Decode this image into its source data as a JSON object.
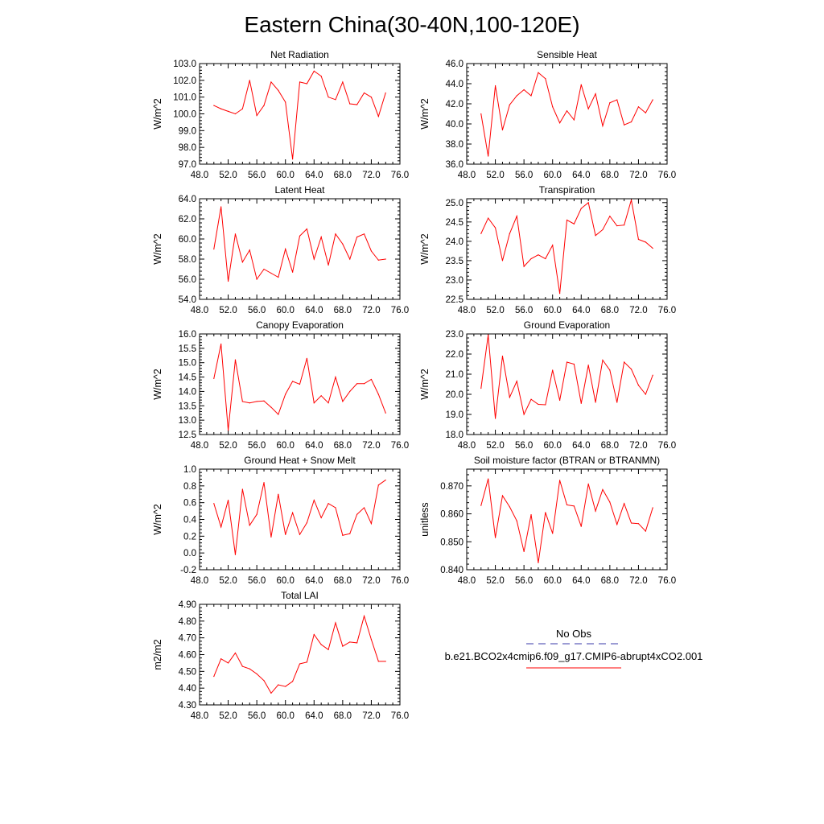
{
  "figure_title": "Eastern China(30-40N,100-120E)",
  "colors": {
    "model_line": "#ff0000",
    "obs_line": "#3a3aa8",
    "axis": "#000000"
  },
  "legend": {
    "obs_label": "No Obs",
    "model_label": "b.e21.BCO2x4cmip6.f09_g17.CMIP6-abrupt4xCO2.001"
  },
  "chart_data": [
    {
      "type": "line",
      "title": "Net Radiation",
      "xlabel": "",
      "ylabel": "W/m^2",
      "xlim": [
        48,
        76
      ],
      "ylim": [
        97,
        103
      ],
      "x_ticks": [
        "48.0",
        "52.0",
        "56.0",
        "60.0",
        "64.0",
        "68.0",
        "72.0",
        "76.0"
      ],
      "y_ticks": [
        "97.0",
        "98.0",
        "99.0",
        "100.0",
        "101.0",
        "102.0",
        "103.0"
      ],
      "x": [
        50,
        51,
        52,
        53,
        54,
        55,
        56,
        57,
        58,
        59,
        60,
        61,
        62,
        63,
        64,
        65,
        66,
        67,
        68,
        69,
        70,
        71,
        72,
        73,
        74
      ],
      "series": [
        {
          "name": "b.e21.BCO2x4cmip6.f09_g17.CMIP6-abrupt4xCO2.001",
          "values": [
            100.5,
            100.3,
            100.15,
            100.0,
            100.3,
            102.0,
            99.9,
            100.5,
            101.9,
            101.4,
            100.7,
            97.3,
            101.9,
            101.8,
            102.55,
            102.25,
            101.0,
            100.85,
            101.9,
            100.6,
            100.55,
            101.25,
            101.0,
            99.85,
            101.25
          ]
        }
      ]
    },
    {
      "type": "line",
      "title": "Sensible Heat",
      "xlabel": "",
      "ylabel": "W/m^2",
      "xlim": [
        48,
        76
      ],
      "ylim": [
        36,
        46
      ],
      "x_ticks": [
        "48.0",
        "52.0",
        "56.0",
        "60.0",
        "64.0",
        "68.0",
        "72.0",
        "76.0"
      ],
      "y_ticks": [
        "36.0",
        "38.0",
        "40.0",
        "42.0",
        "44.0",
        "46.0"
      ],
      "x": [
        50,
        51,
        52,
        53,
        54,
        55,
        56,
        57,
        58,
        59,
        60,
        61,
        62,
        63,
        64,
        65,
        66,
        67,
        68,
        69,
        70,
        71,
        72,
        73,
        74
      ],
      "series": [
        {
          "name": "b.e21.BCO2x4cmip6.f09_g17.CMIP6-abrupt4xCO2.001",
          "values": [
            41.0,
            36.8,
            43.8,
            39.4,
            41.9,
            42.8,
            43.4,
            42.8,
            45.1,
            44.5,
            41.7,
            40.1,
            41.3,
            40.4,
            43.9,
            41.5,
            43.0,
            39.8,
            42.1,
            42.4,
            39.9,
            40.2,
            41.7,
            41.1,
            42.4
          ]
        }
      ]
    },
    {
      "type": "line",
      "title": "Latent Heat",
      "xlabel": "",
      "ylabel": "W/m^2",
      "xlim": [
        48,
        76
      ],
      "ylim": [
        54,
        64
      ],
      "x_ticks": [
        "48.0",
        "52.0",
        "56.0",
        "60.0",
        "64.0",
        "68.0",
        "72.0",
        "76.0"
      ],
      "y_ticks": [
        "54.0",
        "56.0",
        "58.0",
        "60.0",
        "62.0",
        "64.0"
      ],
      "x": [
        50,
        51,
        52,
        53,
        54,
        55,
        56,
        57,
        58,
        59,
        60,
        61,
        62,
        63,
        64,
        65,
        66,
        67,
        68,
        69,
        70,
        71,
        72,
        73,
        74
      ],
      "series": [
        {
          "name": "b.e21.BCO2x4cmip6.f09_g17.CMIP6-abrupt4xCO2.001",
          "values": [
            59.0,
            63.2,
            55.8,
            60.5,
            57.7,
            58.9,
            56.0,
            57.0,
            56.6,
            56.2,
            59.0,
            56.7,
            60.3,
            61.0,
            58.0,
            60.2,
            57.4,
            60.5,
            59.5,
            58.0,
            60.2,
            60.5,
            58.8,
            57.9,
            58.0
          ]
        }
      ]
    },
    {
      "type": "line",
      "title": "Transpiration",
      "xlabel": "",
      "ylabel": "W/m^2",
      "xlim": [
        48,
        76
      ],
      "ylim": [
        22.5,
        25.1
      ],
      "x_ticks": [
        "48.0",
        "52.0",
        "56.0",
        "60.0",
        "64.0",
        "68.0",
        "72.0",
        "76.0"
      ],
      "y_ticks": [
        "22.5",
        "23.0",
        "23.5",
        "24.0",
        "24.5",
        "25.0"
      ],
      "x": [
        50,
        51,
        52,
        53,
        54,
        55,
        56,
        57,
        58,
        59,
        60,
        61,
        62,
        63,
        64,
        65,
        66,
        67,
        68,
        69,
        70,
        71,
        72,
        73,
        74
      ],
      "series": [
        {
          "name": "b.e21.BCO2x4cmip6.f09_g17.CMIP6-abrupt4xCO2.001",
          "values": [
            24.2,
            24.6,
            24.35,
            23.5,
            24.2,
            24.65,
            23.35,
            23.55,
            23.65,
            23.55,
            23.9,
            22.65,
            24.55,
            24.45,
            24.85,
            25.0,
            24.15,
            24.3,
            24.65,
            24.4,
            24.42,
            25.07,
            24.05,
            23.98,
            23.82
          ]
        }
      ]
    },
    {
      "type": "line",
      "title": "Canopy Evaporation",
      "xlabel": "",
      "ylabel": "W/m^2",
      "xlim": [
        48,
        76
      ],
      "ylim": [
        12.5,
        16.0
      ],
      "x_ticks": [
        "48.0",
        "52.0",
        "56.0",
        "60.0",
        "64.0",
        "68.0",
        "72.0",
        "76.0"
      ],
      "y_ticks": [
        "12.5",
        "13.0",
        "13.5",
        "14.0",
        "14.5",
        "15.0",
        "15.5",
        "16.0"
      ],
      "x": [
        50,
        51,
        52,
        53,
        54,
        55,
        56,
        57,
        58,
        59,
        60,
        61,
        62,
        63,
        64,
        65,
        66,
        67,
        68,
        69,
        70,
        71,
        72,
        73,
        74
      ],
      "series": [
        {
          "name": "b.e21.BCO2x4cmip6.f09_g17.CMIP6-abrupt4xCO2.001",
          "values": [
            14.45,
            15.65,
            12.65,
            15.1,
            13.65,
            13.6,
            13.65,
            13.67,
            13.45,
            13.2,
            13.9,
            14.35,
            14.25,
            15.15,
            13.6,
            13.85,
            13.6,
            14.5,
            13.65,
            14.0,
            14.27,
            14.27,
            14.42,
            13.9,
            13.25
          ]
        }
      ]
    },
    {
      "type": "line",
      "title": "Ground Evaporation",
      "xlabel": "",
      "ylabel": "W/m^2",
      "xlim": [
        48,
        76
      ],
      "ylim": [
        18,
        23
      ],
      "x_ticks": [
        "48.0",
        "52.0",
        "56.0",
        "60.0",
        "64.0",
        "68.0",
        "72.0",
        "76.0"
      ],
      "y_ticks": [
        "18.0",
        "19.0",
        "20.0",
        "21.0",
        "22.0",
        "23.0"
      ],
      "x": [
        50,
        51,
        52,
        53,
        54,
        55,
        56,
        57,
        58,
        59,
        60,
        61,
        62,
        63,
        64,
        65,
        66,
        67,
        68,
        69,
        70,
        71,
        72,
        73,
        74
      ],
      "series": [
        {
          "name": "b.e21.BCO2x4cmip6.f09_g17.CMIP6-abrupt4xCO2.001",
          "values": [
            20.3,
            22.95,
            18.8,
            21.9,
            19.85,
            20.65,
            19.0,
            19.75,
            19.5,
            19.48,
            21.2,
            19.7,
            21.6,
            21.5,
            19.55,
            21.45,
            19.6,
            21.7,
            21.2,
            19.6,
            21.6,
            21.25,
            20.45,
            20.0,
            20.95
          ]
        }
      ]
    },
    {
      "type": "line",
      "title": "Ground Heat + Snow Melt",
      "xlabel": "",
      "ylabel": "W/m^2",
      "xlim": [
        48,
        76
      ],
      "ylim": [
        -0.2,
        1.0
      ],
      "x_ticks": [
        "48.0",
        "52.0",
        "56.0",
        "60.0",
        "64.0",
        "68.0",
        "72.0",
        "76.0"
      ],
      "y_ticks": [
        "-0.2",
        "0.0",
        "0.2",
        "0.4",
        "0.6",
        "0.8",
        "1.0"
      ],
      "x": [
        50,
        51,
        52,
        53,
        54,
        55,
        56,
        57,
        58,
        59,
        60,
        61,
        62,
        63,
        64,
        65,
        66,
        67,
        68,
        69,
        70,
        71,
        72,
        73,
        74
      ],
      "series": [
        {
          "name": "b.e21.BCO2x4cmip6.f09_g17.CMIP6-abrupt4xCO2.001",
          "values": [
            0.59,
            0.31,
            0.63,
            -0.02,
            0.76,
            0.33,
            0.46,
            0.84,
            0.19,
            0.7,
            0.22,
            0.48,
            0.22,
            0.36,
            0.63,
            0.42,
            0.59,
            0.54,
            0.21,
            0.23,
            0.46,
            0.54,
            0.35,
            0.81,
            0.87
          ]
        }
      ]
    },
    {
      "type": "line",
      "title": "Soil moisture factor (BTRAN or BTRANMN)",
      "xlabel": "",
      "ylabel": "unitless",
      "xlim": [
        48,
        76
      ],
      "ylim": [
        0.84,
        0.876
      ],
      "x_ticks": [
        "48.0",
        "52.0",
        "56.0",
        "60.0",
        "64.0",
        "68.0",
        "72.0",
        "76.0"
      ],
      "y_ticks": [
        "0.840",
        "0.850",
        "0.860",
        "0.870"
      ],
      "x": [
        50,
        51,
        52,
        53,
        54,
        55,
        56,
        57,
        58,
        59,
        60,
        61,
        62,
        63,
        64,
        65,
        66,
        67,
        68,
        69,
        70,
        71,
        72,
        73,
        74
      ],
      "series": [
        {
          "name": "b.e21.BCO2x4cmip6.f09_g17.CMIP6-abrupt4xCO2.001",
          "values": [
            0.863,
            0.8725,
            0.8515,
            0.8665,
            0.8625,
            0.8575,
            0.8465,
            0.8597,
            0.8425,
            0.8605,
            0.853,
            0.872,
            0.8632,
            0.8628,
            0.8555,
            0.8707,
            0.861,
            0.8687,
            0.8642,
            0.8562,
            0.8637,
            0.8567,
            0.8565,
            0.8538,
            0.8622
          ]
        }
      ]
    },
    {
      "type": "line",
      "title": "Total LAI",
      "xlabel": "",
      "ylabel": "m2/m2",
      "xlim": [
        48,
        76
      ],
      "ylim": [
        4.3,
        4.9
      ],
      "x_ticks": [
        "48.0",
        "52.0",
        "56.0",
        "60.0",
        "64.0",
        "68.0",
        "72.0",
        "76.0"
      ],
      "y_ticks": [
        "4.30",
        "4.40",
        "4.50",
        "4.60",
        "4.70",
        "4.80",
        "4.90"
      ],
      "x": [
        50,
        51,
        52,
        53,
        54,
        55,
        56,
        57,
        58,
        59,
        60,
        61,
        62,
        63,
        64,
        65,
        66,
        67,
        68,
        69,
        70,
        71,
        72,
        73,
        74
      ],
      "series": [
        {
          "name": "b.e21.BCO2x4cmip6.f09_g17.CMIP6-abrupt4xCO2.001",
          "values": [
            4.47,
            4.575,
            4.55,
            4.61,
            4.53,
            4.515,
            4.485,
            4.445,
            4.37,
            4.42,
            4.41,
            4.44,
            4.545,
            4.555,
            4.72,
            4.66,
            4.63,
            4.79,
            4.65,
            4.675,
            4.67,
            4.83,
            4.69,
            4.56,
            4.56
          ]
        }
      ]
    }
  ]
}
